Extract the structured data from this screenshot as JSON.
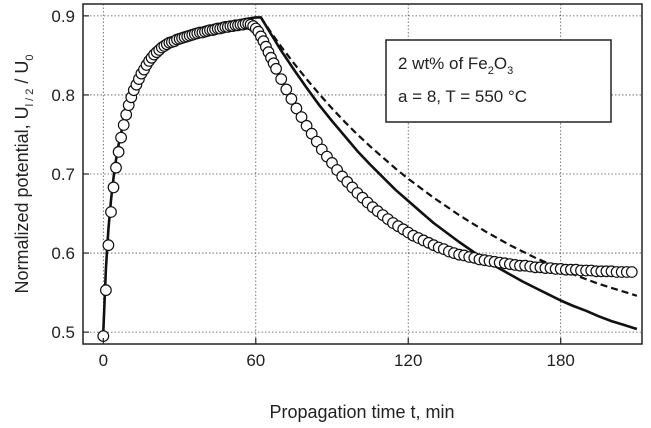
{
  "chart_data": {
    "type": "scatter",
    "title": "",
    "xlabel": "Propagation time  t, min",
    "ylabel": {
      "main": "Normalized potential, U",
      "sub1": "l / 2",
      "mid": " / U",
      "sub2": "0"
    },
    "xlim": [
      -8,
      212
    ],
    "ylim": [
      0.485,
      0.915
    ],
    "x_ticks": [
      "0",
      "60",
      "120",
      "180"
    ],
    "x_tick_values": [
      0,
      60,
      120,
      180
    ],
    "y_ticks": [
      "0.5",
      "0.6",
      "0.7",
      "0.8",
      "0.9"
    ],
    "y_tick_values": [
      0.5,
      0.6,
      0.7,
      0.8,
      0.9
    ],
    "grid": "dotted",
    "annotation": {
      "line1_pre": "2 wt% of Fe",
      "line1_sub1": "2",
      "line1_mid": "O",
      "line1_sub2": "3",
      "line2": "a = 8, T = 550 °C"
    },
    "series": [
      {
        "style": "open-circles",
        "x": [
          0,
          1,
          2,
          3,
          4,
          5,
          6,
          7,
          8,
          9,
          10,
          11,
          12,
          13,
          14,
          15,
          16,
          17,
          18,
          19,
          20,
          21,
          22,
          23,
          24,
          25,
          26,
          27,
          28,
          29,
          30,
          31,
          32,
          33,
          34,
          35,
          36,
          37,
          38,
          39,
          40,
          41,
          42,
          43,
          44,
          45,
          46,
          47,
          48,
          49,
          50,
          51,
          52,
          53,
          54,
          55,
          56,
          57,
          58,
          59,
          60,
          61,
          62,
          63,
          64,
          65,
          66,
          67,
          68,
          70,
          72,
          74,
          76,
          78,
          80,
          82,
          84,
          86,
          88,
          90,
          92,
          94,
          96,
          98,
          100,
          102,
          104,
          106,
          108,
          110,
          112,
          114,
          116,
          118,
          120,
          122,
          124,
          126,
          128,
          130,
          132,
          134,
          136,
          138,
          140,
          142,
          144,
          146,
          148,
          150,
          152,
          154,
          156,
          158,
          160,
          162,
          164,
          166,
          168,
          170,
          172,
          174,
          176,
          178,
          180,
          182,
          184,
          186,
          188,
          190,
          192,
          194,
          196,
          198,
          200,
          202,
          204,
          206,
          208
        ],
        "y": [
          0.495,
          0.553,
          0.61,
          0.652,
          0.683,
          0.708,
          0.728,
          0.746,
          0.762,
          0.775,
          0.787,
          0.797,
          0.806,
          0.813,
          0.82,
          0.827,
          0.832,
          0.838,
          0.843,
          0.847,
          0.851,
          0.854,
          0.857,
          0.86,
          0.862,
          0.864,
          0.866,
          0.867,
          0.868,
          0.87,
          0.871,
          0.872,
          0.873,
          0.874,
          0.875,
          0.876,
          0.877,
          0.878,
          0.879,
          0.879,
          0.88,
          0.881,
          0.882,
          0.882,
          0.883,
          0.884,
          0.884,
          0.885,
          0.886,
          0.886,
          0.887,
          0.887,
          0.888,
          0.888,
          0.889,
          0.889,
          0.89,
          0.89,
          0.889,
          0.887,
          0.884,
          0.88,
          0.874,
          0.868,
          0.861,
          0.854,
          0.847,
          0.84,
          0.833,
          0.82,
          0.807,
          0.795,
          0.783,
          0.772,
          0.761,
          0.751,
          0.741,
          0.731,
          0.722,
          0.714,
          0.705,
          0.697,
          0.69,
          0.683,
          0.676,
          0.67,
          0.664,
          0.658,
          0.653,
          0.648,
          0.643,
          0.638,
          0.634,
          0.63,
          0.626,
          0.622,
          0.619,
          0.616,
          0.613,
          0.61,
          0.607,
          0.605,
          0.602,
          0.6,
          0.598,
          0.597,
          0.595,
          0.594,
          0.592,
          0.591,
          0.59,
          0.589,
          0.588,
          0.587,
          0.586,
          0.585,
          0.584,
          0.584,
          0.583,
          0.582,
          0.582,
          0.581,
          0.581,
          0.58,
          0.58,
          0.579,
          0.579,
          0.579,
          0.578,
          0.578,
          0.578,
          0.577,
          0.577,
          0.577,
          0.577,
          0.576,
          0.576,
          0.576,
          0.576
        ]
      },
      {
        "style": "solid-line",
        "x": [
          0,
          1,
          2,
          3,
          4,
          5,
          6,
          8,
          10,
          12,
          14,
          16,
          18,
          20,
          24,
          28,
          32,
          36,
          40,
          44,
          48,
          52,
          56,
          60,
          62,
          66,
          70,
          75,
          80,
          85,
          90,
          95,
          100,
          105,
          110,
          115,
          120,
          125,
          130,
          135,
          140,
          145,
          150,
          155,
          160,
          165,
          170,
          175,
          180,
          185,
          190,
          195,
          200,
          205,
          210
        ],
        "y": [
          0.5,
          0.58,
          0.63,
          0.667,
          0.695,
          0.718,
          0.737,
          0.767,
          0.789,
          0.806,
          0.82,
          0.831,
          0.84,
          0.848,
          0.86,
          0.868,
          0.874,
          0.879,
          0.883,
          0.887,
          0.89,
          0.893,
          0.896,
          0.898,
          0.898,
          0.877,
          0.856,
          0.832,
          0.809,
          0.787,
          0.767,
          0.748,
          0.729,
          0.712,
          0.696,
          0.68,
          0.666,
          0.652,
          0.638,
          0.626,
          0.614,
          0.603,
          0.592,
          0.582,
          0.573,
          0.564,
          0.556,
          0.548,
          0.54,
          0.533,
          0.527,
          0.52,
          0.514,
          0.509,
          0.504
        ]
      },
      {
        "style": "dashed-line",
        "x": [
          62,
          66,
          70,
          75,
          80,
          85,
          90,
          95,
          100,
          105,
          110,
          115,
          120,
          125,
          130,
          135,
          140,
          145,
          150,
          155,
          160,
          165,
          170,
          175,
          180,
          185,
          190,
          195,
          200,
          205,
          210
        ],
        "y": [
          0.898,
          0.879,
          0.861,
          0.84,
          0.82,
          0.801,
          0.783,
          0.766,
          0.75,
          0.735,
          0.721,
          0.707,
          0.694,
          0.682,
          0.67,
          0.659,
          0.648,
          0.638,
          0.628,
          0.619,
          0.61,
          0.602,
          0.594,
          0.587,
          0.58,
          0.573,
          0.567,
          0.561,
          0.556,
          0.551,
          0.546
        ]
      }
    ]
  }
}
